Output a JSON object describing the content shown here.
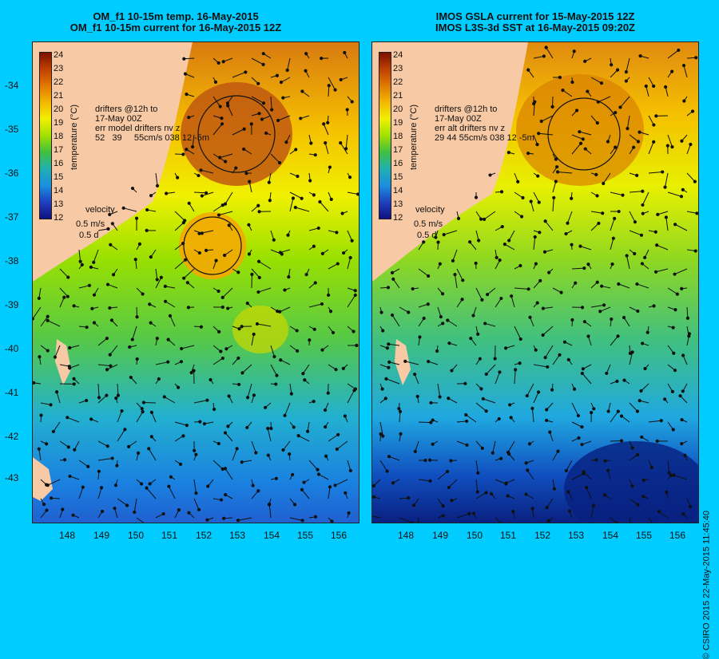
{
  "left": {
    "title_line1": "OM_f1 10-15m temp. 16-May-2015",
    "title_line2": "OM_f1 10-15m current for 16-May-2015 12Z",
    "drifter_text": "drifters @12h to\n17-May 00Z\nerr model drifters nv z\n52   39     55cm/s 038 12 -5m",
    "velocity_label": "velocity",
    "velocity_scale": "0.5 m/s",
    "velocity_time": "0.5 d"
  },
  "right": {
    "title_line1": "IMOS GSLA current for 15-May-2015 12Z",
    "title_line2": "IMOS L3S-3d SST at 16-May-2015 09:20Z",
    "drifter_text": "drifters @12h to\n17-May 00Z\nerr alt drifters nv z\n29 44 55cm/s 038 12 -5m",
    "velocity_label": "velocity",
    "velocity_scale": "0.5 m/s",
    "velocity_time": "0.5 d"
  },
  "colorbar": {
    "label": "temperature (°C)",
    "ticks": [
      "24",
      "23",
      "22",
      "21",
      "20",
      "19",
      "18",
      "17",
      "16",
      "15",
      "14",
      "13",
      "12"
    ]
  },
  "lat_ticks": [
    "-34",
    "-35",
    "-36",
    "-37",
    "-38",
    "-39",
    "-40",
    "-41",
    "-42",
    "-43"
  ],
  "lon_ticks": [
    "148",
    "149",
    "150",
    "151",
    "152",
    "153",
    "154",
    "155",
    "156"
  ],
  "copyright": "© CSIRO 2015   22-May-2015 11:45:40",
  "colors": {
    "background": "#00ccff",
    "land": "#f7c9a4"
  }
}
